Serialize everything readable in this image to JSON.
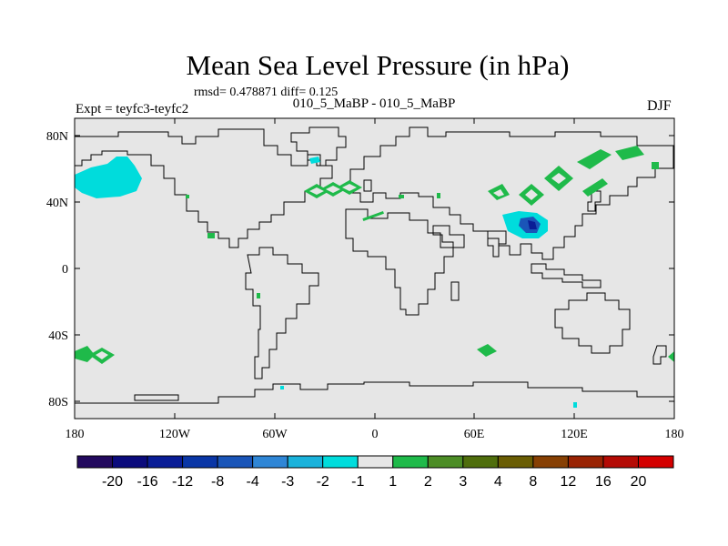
{
  "title": "Mean Sea Level Pressure (in hPa)",
  "stats": "rmsd= 0.478871 diff= 0.125",
  "subtitle": "010_5_MaBP - 010_5_MaBP",
  "experiment": "Expt = teyfc3-teyfc2",
  "season": "DJF",
  "axes": {
    "lat_ticks": [
      "80N",
      "40N",
      "0",
      "40S",
      "80S"
    ],
    "lon_ticks": [
      "180",
      "120W",
      "60W",
      "0",
      "60E",
      "120E",
      "180"
    ]
  },
  "colorbar": {
    "labels": [
      "-20",
      "-16",
      "-12",
      "-8",
      "-4",
      "-3",
      "-2",
      "-1",
      "1",
      "2",
      "3",
      "4",
      "8",
      "12",
      "16",
      "20"
    ],
    "colors": [
      "#230a5e",
      "#0b0b7c",
      "#0a1d96",
      "#0a36a6",
      "#1a55b8",
      "#2f86d6",
      "#1ab2db",
      "#00dcdc",
      "#e6e6e6",
      "#1fba4a",
      "#4c8d26",
      "#4f6e0c",
      "#6a5d04",
      "#874004",
      "#992303",
      "#b40b05",
      "#d40000"
    ]
  },
  "map_colors": {
    "land_background": "#e6e6e6",
    "cyan": "#00dcdc",
    "green": "#1fba4a",
    "blue": "#1a55b8",
    "dark_blue": "#0a1d96"
  }
}
